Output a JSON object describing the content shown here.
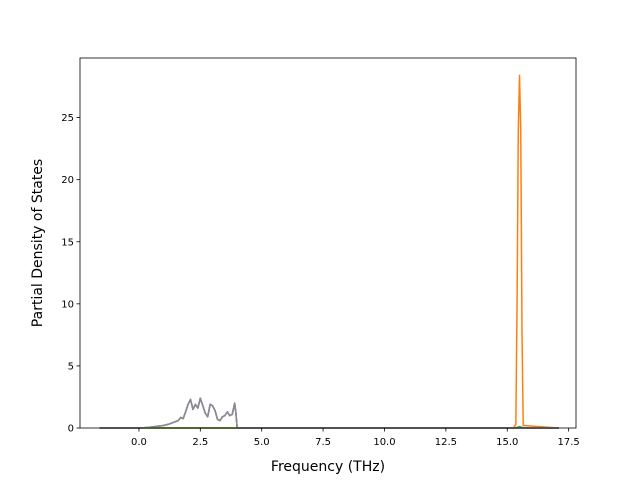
{
  "chart_data": {
    "type": "line",
    "title": "",
    "xlabel": "Frequency (THz)",
    "ylabel": "Partial Density of States",
    "xlim": [
      -2.4,
      17.8
    ],
    "ylim": [
      0,
      29.8
    ],
    "grid": false,
    "legend": "none",
    "x_ticks": [
      {
        "value": 0.0,
        "label": "0.0"
      },
      {
        "value": 2.5,
        "label": "2.5"
      },
      {
        "value": 5.0,
        "label": "5.0"
      },
      {
        "value": 7.5,
        "label": "7.5"
      },
      {
        "value": 10.0,
        "label": "10.0"
      },
      {
        "value": 12.5,
        "label": "12.5"
      },
      {
        "value": 15.0,
        "label": "15.0"
      },
      {
        "value": 17.5,
        "label": "17.5"
      }
    ],
    "y_ticks": [
      {
        "value": 0,
        "label": "0"
      },
      {
        "value": 5,
        "label": "5"
      },
      {
        "value": 10,
        "label": "10"
      },
      {
        "value": 15,
        "label": "15"
      },
      {
        "value": 20,
        "label": "20"
      },
      {
        "value": 25,
        "label": "25"
      }
    ],
    "series": [
      {
        "color": "#1f77b4",
        "x": [
          -1.6,
          0.0,
          0.2,
          0.4,
          0.6,
          0.8,
          1.0,
          1.2,
          1.4,
          1.6,
          1.7,
          1.8,
          1.9,
          2.0,
          2.1,
          2.2,
          2.3,
          2.4,
          2.5,
          2.6,
          2.7,
          2.8,
          2.9,
          3.0,
          3.1,
          3.2,
          3.3,
          3.4,
          3.5,
          3.6,
          3.7,
          3.8,
          3.9,
          3.95,
          4.0,
          17.1
        ],
        "y": [
          0,
          0,
          0.02,
          0.05,
          0.1,
          0.15,
          0.2,
          0.3,
          0.45,
          0.6,
          0.85,
          0.75,
          1.3,
          1.9,
          2.3,
          1.5,
          1.9,
          1.6,
          2.4,
          1.8,
          1.2,
          0.9,
          1.9,
          1.8,
          1.4,
          0.7,
          0.6,
          0.9,
          1.0,
          1.3,
          1.0,
          1.1,
          2.0,
          1.2,
          0,
          0
        ]
      },
      {
        "color": "#ff7f0e",
        "x": [
          -1.6,
          15.25,
          15.35,
          15.4,
          15.45,
          15.5,
          15.55,
          15.6,
          15.65,
          17.1
        ],
        "y": [
          0,
          0,
          0.3,
          10,
          24,
          28.4,
          24,
          8,
          0.2,
          0
        ]
      },
      {
        "color": "#2ca02c",
        "x": [
          -1.6,
          15.25,
          15.4,
          15.5,
          15.6,
          15.7,
          17.1
        ],
        "y": [
          0,
          0,
          0.05,
          0.1,
          0.05,
          0,
          0
        ]
      },
      {
        "color": "#9467bd",
        "x": [
          -1.6,
          0.0,
          0.2,
          0.4,
          0.6,
          0.8,
          1.0,
          1.2,
          1.4,
          1.6,
          1.7,
          1.8,
          1.9,
          2.0,
          2.1,
          2.2,
          2.3,
          2.4,
          2.5,
          2.6,
          2.7,
          2.8,
          2.9,
          3.0,
          3.1,
          3.2,
          3.3,
          3.4,
          3.5,
          3.6,
          3.7,
          3.8,
          3.9,
          3.95,
          4.0,
          17.1
        ],
        "y": [
          0,
          0,
          0.02,
          0.05,
          0.1,
          0.15,
          0.2,
          0.3,
          0.45,
          0.6,
          0.85,
          0.75,
          1.3,
          1.9,
          2.3,
          1.5,
          1.9,
          1.6,
          2.4,
          1.8,
          1.2,
          0.9,
          1.9,
          1.8,
          1.4,
          0.7,
          0.6,
          0.9,
          1.0,
          1.3,
          1.0,
          1.1,
          2.0,
          1.2,
          0,
          0
        ]
      },
      {
        "color": "#8c8c8c",
        "x": [
          -1.6,
          0.0,
          0.2,
          0.4,
          0.6,
          0.8,
          1.0,
          1.2,
          1.4,
          1.6,
          1.7,
          1.8,
          1.9,
          2.0,
          2.1,
          2.2,
          2.3,
          2.4,
          2.5,
          2.6,
          2.7,
          2.8,
          2.9,
          3.0,
          3.1,
          3.2,
          3.3,
          3.4,
          3.5,
          3.6,
          3.7,
          3.8,
          3.9,
          3.95,
          4.0,
          17.1
        ],
        "y": [
          0,
          0,
          0.02,
          0.05,
          0.1,
          0.15,
          0.2,
          0.3,
          0.45,
          0.6,
          0.85,
          0.75,
          1.3,
          1.9,
          2.3,
          1.5,
          1.9,
          1.6,
          2.4,
          1.8,
          1.2,
          0.9,
          1.9,
          1.8,
          1.4,
          0.7,
          0.6,
          0.9,
          1.0,
          1.3,
          1.0,
          1.1,
          2.0,
          1.2,
          0,
          0
        ]
      }
    ]
  }
}
